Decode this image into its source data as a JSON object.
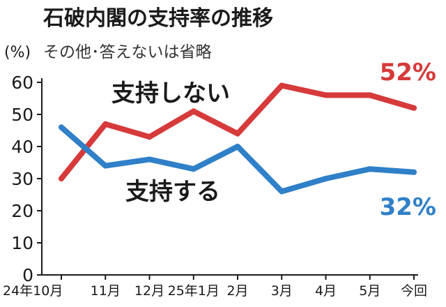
{
  "chart_data": {
    "type": "line",
    "title": "石破内閣の支持率の推移",
    "unit_label": "(%)",
    "note": "その他･答えないは省略",
    "categories": [
      "24年10月",
      "11月",
      "12月",
      "25年1月",
      "2月",
      "3月",
      "4月",
      "5月",
      "今回"
    ],
    "ylim": [
      0,
      60
    ],
    "yticks": [
      0,
      10,
      20,
      30,
      40,
      50,
      60
    ],
    "grid": false,
    "series": [
      {
        "name": "支持しない",
        "color": "#d63a3a",
        "values": [
          30,
          47,
          43,
          51,
          44,
          59,
          56,
          56,
          52
        ],
        "end_label": "52%"
      },
      {
        "name": "支持する",
        "color": "#2f80c8",
        "values": [
          46,
          34,
          36,
          33,
          40,
          26,
          30,
          33,
          32
        ],
        "end_label": "32%"
      }
    ]
  }
}
